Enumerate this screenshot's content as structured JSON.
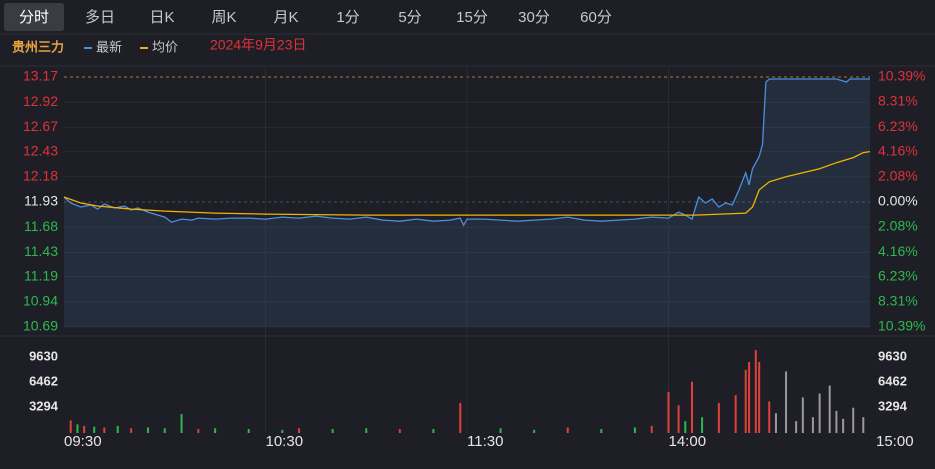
{
  "tabs": [
    "分时",
    "多日",
    "日K",
    "周K",
    "月K",
    "1分",
    "5分",
    "15分",
    "30分",
    "60分"
  ],
  "active_tab": 0,
  "chart_data": {
    "type": "line",
    "name": "贵州三力",
    "date": "2024年9月23日",
    "xlim": [
      0,
      240
    ],
    "xticks": [
      {
        "value": 0,
        "label": "09:30"
      },
      {
        "value": 60,
        "label": "10:30"
      },
      {
        "value": 120,
        "label": "11:30"
      },
      {
        "value": 180,
        "label": "14:00"
      },
      {
        "value": 240,
        "label": "15:00"
      }
    ],
    "ylim": [
      10.69,
      13.17
    ],
    "yticks": [
      13.17,
      12.92,
      12.67,
      12.43,
      12.18,
      11.93,
      11.68,
      11.43,
      11.19,
      10.94,
      10.69
    ],
    "y2lim": [
      -10.39,
      10.39
    ],
    "y2ticks": [
      {
        "value": 10.39,
        "label": "10.39%"
      },
      {
        "value": 8.31,
        "label": "8.31%"
      },
      {
        "value": 6.23,
        "label": "6.23%"
      },
      {
        "value": 4.16,
        "label": "4.16%"
      },
      {
        "value": 2.08,
        "label": "2.08%"
      },
      {
        "value": 0,
        "label": "0.00%"
      },
      {
        "value": -2.08,
        "label": "2.08%"
      },
      {
        "value": -4.16,
        "label": "4.16%"
      },
      {
        "value": -6.23,
        "label": "6.23%"
      },
      {
        "value": -8.31,
        "label": "8.31%"
      },
      {
        "value": -10.39,
        "label": "10.39%"
      }
    ],
    "series": [
      {
        "name": "最新",
        "color": "#4a90e2",
        "x": [
          0,
          2,
          5,
          8,
          10,
          12,
          15,
          18,
          20,
          22,
          25,
          28,
          30,
          32,
          35,
          38,
          40,
          45,
          50,
          55,
          60,
          65,
          70,
          75,
          80,
          85,
          90,
          95,
          100,
          105,
          110,
          115,
          118,
          119,
          120,
          125,
          130,
          135,
          140,
          145,
          150,
          155,
          160,
          165,
          170,
          175,
          180,
          183,
          185,
          187,
          189,
          191,
          193,
          195,
          197,
          199,
          201,
          203,
          204,
          205,
          207,
          208,
          209,
          210,
          215,
          225,
          230,
          233,
          234,
          240
        ],
        "values": [
          11.98,
          11.92,
          11.88,
          11.9,
          11.86,
          11.91,
          11.87,
          11.89,
          11.85,
          11.87,
          11.83,
          11.8,
          11.78,
          11.73,
          11.76,
          11.75,
          11.77,
          11.76,
          11.77,
          11.77,
          11.76,
          11.78,
          11.77,
          11.79,
          11.77,
          11.76,
          11.78,
          11.75,
          11.74,
          11.76,
          11.74,
          11.75,
          11.77,
          11.7,
          11.76,
          11.76,
          11.75,
          11.74,
          11.75,
          11.76,
          11.78,
          11.75,
          11.74,
          11.75,
          11.76,
          11.78,
          11.77,
          11.83,
          11.8,
          11.76,
          11.98,
          11.92,
          11.96,
          11.88,
          11.92,
          11.9,
          12.05,
          12.22,
          12.1,
          12.26,
          12.38,
          12.5,
          13.12,
          13.15,
          13.15,
          13.15,
          13.15,
          13.12,
          13.15,
          13.15
        ]
      },
      {
        "name": "均价",
        "color": "#f0b400",
        "x": [
          0,
          5,
          10,
          20,
          30,
          45,
          60,
          90,
          120,
          150,
          188,
          203,
          205,
          207,
          210,
          215,
          220,
          225,
          230,
          235,
          238,
          240
        ],
        "values": [
          11.98,
          11.92,
          11.89,
          11.86,
          11.84,
          11.82,
          11.81,
          11.8,
          11.8,
          11.8,
          11.8,
          11.82,
          11.88,
          12.05,
          12.13,
          12.18,
          12.22,
          12.26,
          12.32,
          12.37,
          12.42,
          12.43
        ]
      }
    ],
    "volume": {
      "type": "bar",
      "ylim": [
        0,
        11780
      ],
      "yticks": [
        3294,
        6462,
        9630
      ],
      "series": [
        {
          "color": "#e0403a",
          "x": [
            2,
            6,
            12,
            20,
            40,
            70,
            100,
            118,
            150,
            175,
            180,
            183,
            187,
            195,
            200,
            203,
            204,
            206,
            207,
            210
          ],
          "values": [
            1600,
            900,
            700,
            600,
            500,
            600,
            500,
            3800,
            700,
            900,
            5200,
            3500,
            6500,
            3800,
            4800,
            8000,
            9000,
            10500,
            9000,
            4000
          ]
        },
        {
          "color": "#2db84d",
          "x": [
            4,
            9,
            16,
            25,
            30,
            35,
            45,
            55,
            65,
            80,
            90,
            110,
            130,
            140,
            160,
            170,
            185,
            190
          ],
          "values": [
            1100,
            800,
            900,
            700,
            600,
            2400,
            600,
            500,
            400,
            500,
            600,
            500,
            600,
            400,
            500,
            700,
            1500,
            2000
          ]
        },
        {
          "color": "#9a9a9a",
          "x": [
            212,
            215,
            218,
            220,
            223,
            225,
            228,
            230,
            232,
            235,
            238
          ],
          "values": [
            2500,
            7800,
            1500,
            4500,
            2000,
            5000,
            6000,
            2800,
            1800,
            3200,
            2000
          ]
        }
      ]
    }
  }
}
